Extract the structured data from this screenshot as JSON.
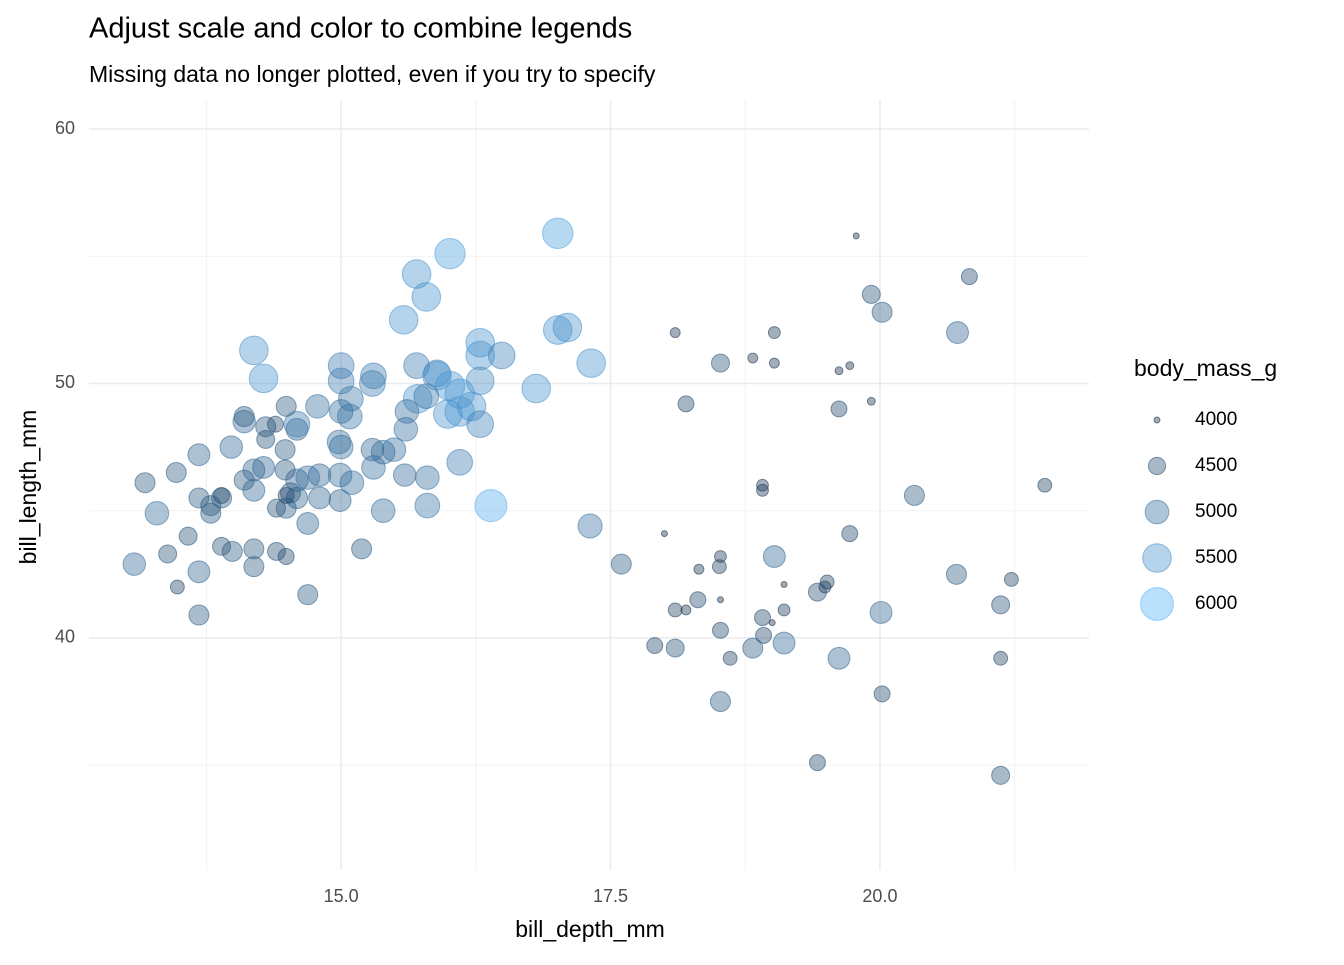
{
  "chart_data": {
    "type": "scatter",
    "title": "Adjust scale and color to combine legends",
    "subtitle": "Missing data no longer plotted, even if you try to specify",
    "x_label": "bill_depth_mm",
    "y_label": "bill_length_mm",
    "xlim": [
      12.66,
      21.94
    ],
    "ylim": [
      30.88,
      61.14
    ],
    "xticks": [
      {
        "value": 15,
        "label": "15.0"
      },
      17.5,
      {
        "value": 20,
        "label": "20.0"
      }
    ],
    "yticks": [
      40,
      50,
      60
    ],
    "x_minor_ticks": [
      13.75,
      16.25,
      18.75,
      21.25
    ],
    "y_minor_ticks": [
      35,
      45,
      55
    ],
    "grid": true,
    "color_low": "#132B43",
    "color_high": "#56B1F7",
    "size_lim": [
      4000,
      6000
    ],
    "legend": {
      "title": "body_mass_g",
      "position": "right",
      "values": [
        4000,
        4500,
        5000,
        5500,
        6000
      ]
    },
    "x": [
      19.78,
      20.83,
      19.92,
      20.02,
      20.72,
      18.1,
      19.02,
      18.82,
      18.52,
      19.02,
      19.72,
      19.62,
      18.2,
      19.62,
      19.92,
      21.53,
      20.32,
      19.72,
      18.91,
      18.91,
      18.0,
      17.31,
      17.6,
      18.52,
      18.51,
      18.32,
      19.02,
      19.11,
      19.51,
      19.49,
      19.42,
      18.52,
      18.31,
      18.1,
      18.2,
      18.91,
      19.0,
      19.11,
      20.01,
      20.71,
      21.22,
      21.12,
      18.52,
      18.92,
      17.91,
      18.1,
      18.82,
      19.11,
      18.61,
      19.62,
      21.12,
      20.02,
      18.52,
      19.42,
      21.12,
      17.01,
      16.01,
      15.7,
      15.79,
      15.58,
      17.01,
      17.1,
      16.29,
      14.19,
      16.49,
      16.29,
      17.32,
      14.28,
      15.0,
      15.0,
      15.3,
      15.29,
      15.7,
      15.89,
      15.71,
      15.89,
      16.01,
      16.81,
      16.29,
      16.1,
      16.1,
      16.21,
      15.99,
      16.29,
      16.1,
      16.39,
      15.79,
      15.61,
      15.6,
      15.49,
      15.59,
      15.8,
      15.8,
      15.39,
      15.29,
      15.08,
      15.09,
      15.0,
      14.98,
      15.0,
      14.78,
      14.99,
      14.8,
      15.1,
      15.3,
      15.39,
      15.19,
      14.69,
      14.8,
      14.69,
      14.59,
      14.59,
      14.59,
      14.59,
      14.49,
      14.1,
      14.1,
      14.3,
      14.39,
      13.98,
      13.68,
      13.47,
      13.18,
      13.29,
      13.08,
      13.39,
      13.48,
      13.68,
      13.68,
      13.58,
      13.68,
      13.79,
      13.79,
      13.89,
      13.89,
      13.99,
      13.89,
      14.1,
      14.19,
      14.19,
      14.28,
      14.19,
      14.19,
      14.4,
      14.49,
      14.4,
      14.48,
      14.48,
      14.49,
      14.53,
      14.3,
      14.69,
      14.49,
      14.99
    ],
    "y": [
      55.8,
      54.2,
      53.5,
      52.8,
      52.0,
      52.0,
      52.0,
      51.0,
      50.8,
      50.8,
      50.7,
      50.5,
      49.2,
      49.0,
      49.3,
      46.0,
      45.6,
      44.1,
      46.0,
      45.8,
      44.1,
      44.4,
      42.9,
      43.2,
      42.8,
      42.7,
      43.2,
      42.1,
      42.2,
      42.0,
      41.8,
      41.5,
      41.5,
      41.1,
      41.1,
      40.8,
      40.6,
      41.1,
      41.0,
      42.5,
      42.3,
      41.3,
      40.3,
      40.1,
      39.7,
      39.6,
      39.6,
      39.8,
      39.2,
      39.2,
      39.2,
      37.8,
      37.5,
      35.1,
      34.6,
      55.9,
      55.1,
      54.3,
      53.4,
      52.5,
      52.1,
      52.2,
      51.6,
      51.3,
      51.1,
      51.1,
      50.8,
      50.2,
      50.7,
      50.1,
      50.3,
      50.0,
      50.7,
      50.4,
      49.4,
      50.3,
      49.9,
      49.8,
      50.1,
      49.6,
      48.9,
      49.1,
      48.8,
      48.4,
      46.9,
      45.2,
      49.5,
      48.9,
      48.2,
      47.4,
      46.4,
      46.3,
      45.2,
      47.3,
      47.4,
      48.7,
      49.4,
      48.9,
      47.7,
      47.5,
      49.1,
      46.4,
      46.4,
      46.1,
      46.7,
      45.0,
      43.5,
      46.3,
      45.5,
      44.5,
      46.2,
      45.5,
      48.2,
      48.4,
      49.1,
      48.5,
      48.7,
      48.3,
      48.4,
      47.5,
      47.2,
      46.5,
      46.1,
      44.9,
      42.9,
      43.3,
      42.0,
      40.9,
      42.6,
      44.0,
      45.5,
      45.2,
      44.9,
      45.5,
      43.6,
      43.4,
      45.6,
      46.2,
      46.6,
      45.8,
      46.7,
      43.5,
      42.8,
      43.4,
      43.2,
      45.1,
      47.4,
      46.6,
      45.1,
      45.7,
      47.8,
      41.7,
      45.6,
      45.4
    ],
    "size": [
      4000,
      4420,
      4550,
      4700,
      4850,
      4120,
      4200,
      4120,
      4550,
      4120,
      4050,
      4050,
      4420,
      4420,
      4050,
      4300,
      4700,
      4420,
      4200,
      4200,
      4000,
      5050,
      4700,
      4200,
      4300,
      4120,
      4850,
      4000,
      4300,
      4200,
      4550,
      4000,
      4420,
      4300,
      4120,
      4420,
      4000,
      4200,
      4850,
      4700,
      4300,
      4550,
      4420,
      4420,
      4420,
      4550,
      4700,
      4850,
      4300,
      4850,
      4300,
      4420,
      4700,
      4420,
      4550,
      5700,
      5700,
      5500,
      5500,
      5500,
      5500,
      5500,
      5500,
      5500,
      5300,
      5500,
      5500,
      5500,
      5200,
      5200,
      5200,
      5200,
      5200,
      5300,
      5500,
      5500,
      5600,
      5500,
      5400,
      5600,
      5600,
      5500,
      5500,
      5300,
      5200,
      5900,
      5100,
      5000,
      5000,
      5000,
      4900,
      5000,
      5100,
      5000,
      4900,
      5100,
      5100,
      5000,
      5000,
      5000,
      5000,
      5000,
      4900,
      5000,
      5000,
      5000,
      4700,
      5000,
      4850,
      4850,
      4900,
      4800,
      4850,
      5200,
      4700,
      4900,
      4700,
      4700,
      4420,
      4900,
      4850,
      4700,
      4700,
      5000,
      4900,
      4550,
      4300,
      4700,
      4850,
      4550,
      4700,
      4700,
      4700,
      4700,
      4550,
      4700,
      4420,
      4700,
      4850,
      4850,
      4850,
      4700,
      4700,
      4550,
      4420,
      4550,
      4700,
      4700,
      4700,
      4700,
      4550,
      4700,
      4420,
      4850
    ]
  }
}
